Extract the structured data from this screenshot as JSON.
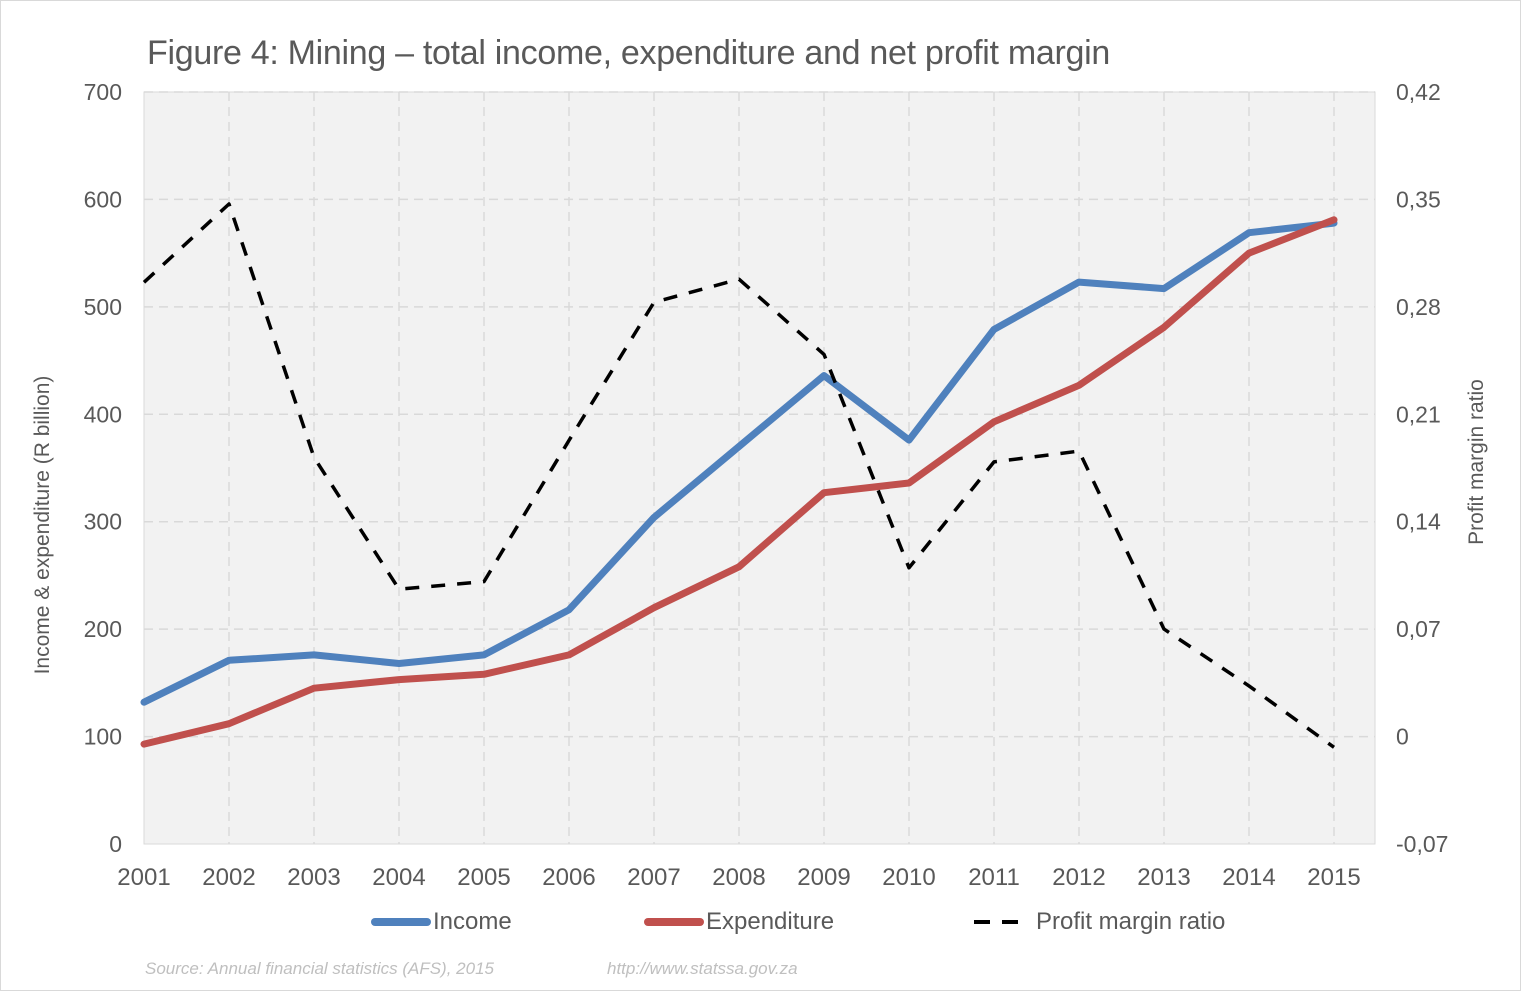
{
  "chart_data": {
    "type": "line",
    "title": "Figure 4: Mining – total income, expenditure and net profit margin",
    "x": [
      "2001",
      "2002",
      "2003",
      "2004",
      "2005",
      "2006",
      "2007",
      "2008",
      "2009",
      "2010",
      "2011",
      "2012",
      "2013",
      "2014",
      "2015"
    ],
    "series": [
      {
        "name": "Income",
        "axis": "left",
        "color": "#4f81bd",
        "style": "solid",
        "values": [
          132,
          171,
          176,
          168,
          176,
          218,
          304,
          370,
          436,
          376,
          479,
          523,
          517,
          569,
          578
        ]
      },
      {
        "name": "Expenditure",
        "axis": "left",
        "color": "#c0504d",
        "style": "solid",
        "values": [
          93,
          112,
          145,
          153,
          158,
          176,
          220,
          258,
          327,
          336,
          393,
          427,
          481,
          550,
          581
        ]
      },
      {
        "name": "Profit margin ratio",
        "axis": "right",
        "color": "#000000",
        "style": "dashed",
        "values": [
          0.296,
          0.347,
          0.182,
          0.096,
          0.101,
          0.193,
          0.283,
          0.298,
          0.249,
          0.11,
          0.179,
          0.186,
          0.07,
          0.033,
          -0.007
        ]
      }
    ],
    "ylabel": "Income & expenditure (R billion)",
    "ylim": [
      0,
      700
    ],
    "yticks": [
      "0",
      "100",
      "200",
      "300",
      "400",
      "500",
      "600",
      "700"
    ],
    "y2label": "Profit margin ratio",
    "y2lim": [
      -0.07,
      0.42
    ],
    "y2ticks": [
      "-0,07",
      "0",
      "0,07",
      "0,14",
      "0,21",
      "0,28",
      "0,35",
      "0,42"
    ],
    "grid": true,
    "legend_position": "bottom"
  },
  "source": {
    "text": "Source: Annual financial statistics (AFS), 2015",
    "url": "http://www.statssa.gov.za"
  }
}
